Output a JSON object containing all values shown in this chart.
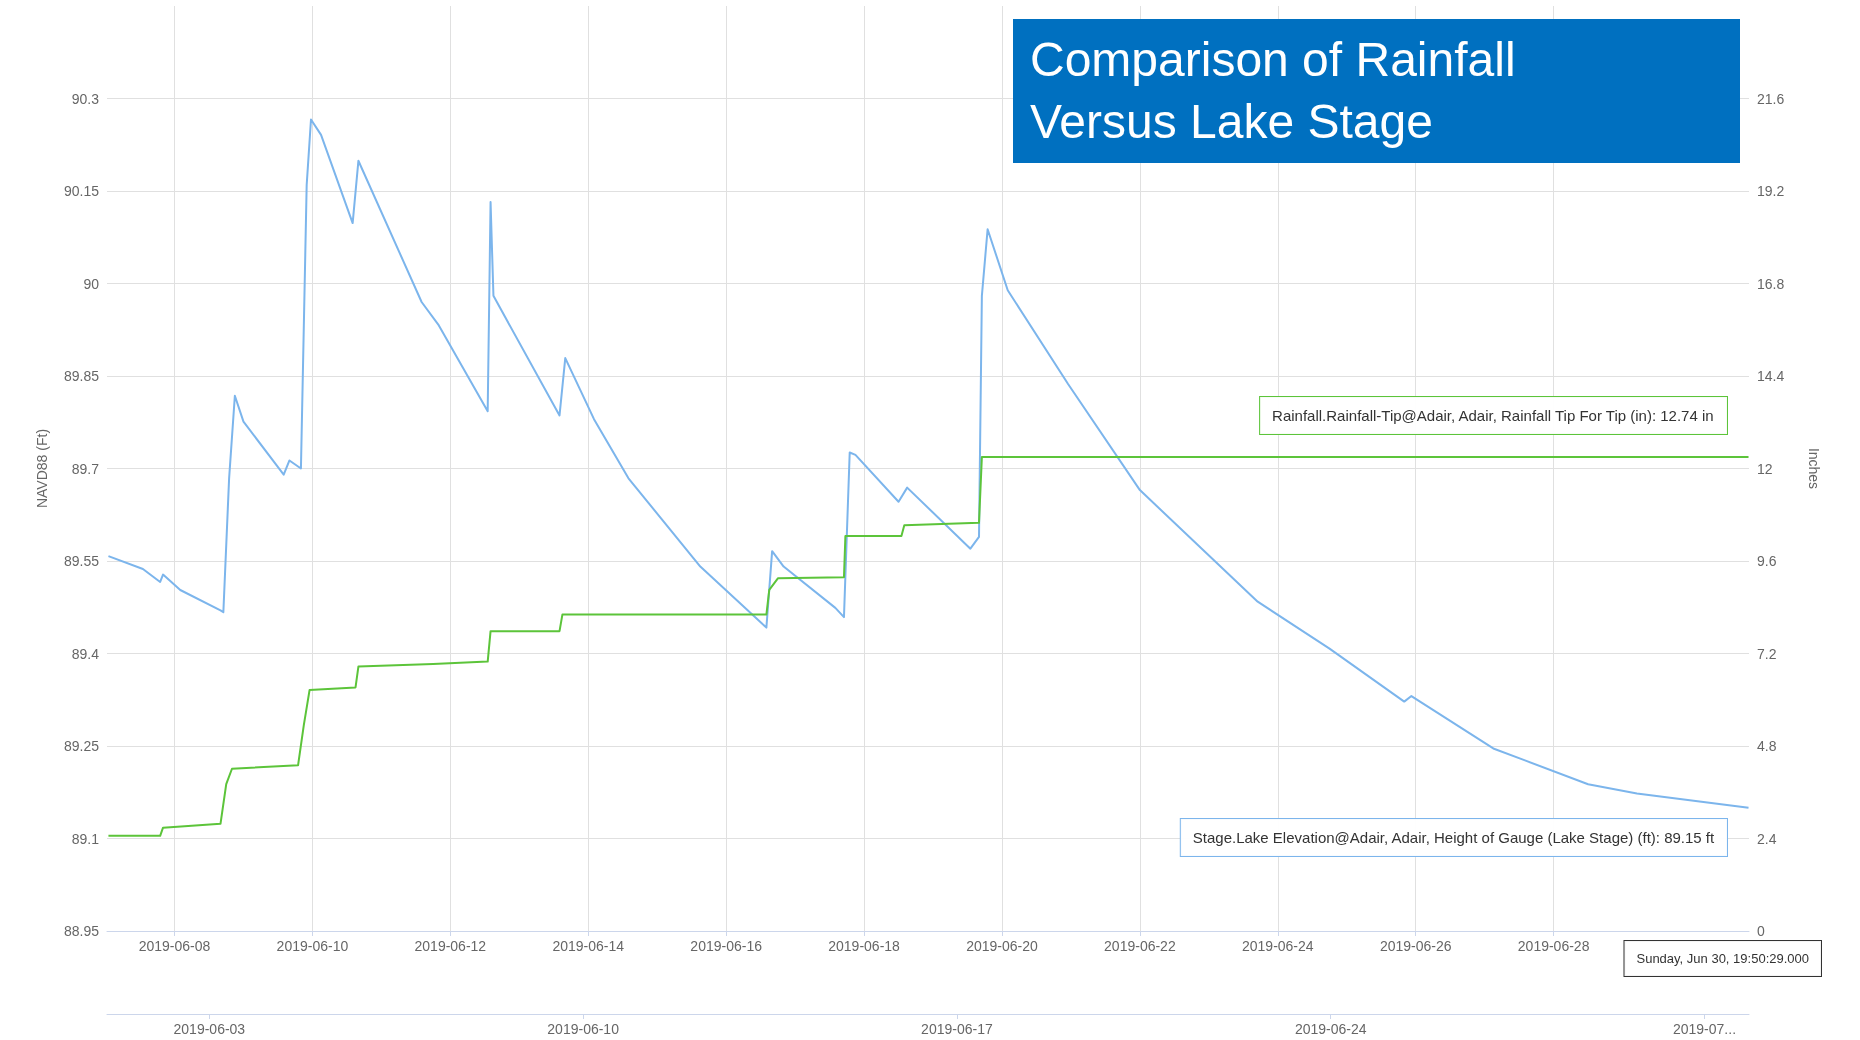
{
  "chart_data": {
    "type": "line",
    "title": "Comparison of Rainfall Versus Lake Stage",
    "ylabel": "NAVD88 (Ft)",
    "y2label": "Inches",
    "annotations": [
      "Rainfall.Rainfall-Tip@Adair, Adair, Rainfall Tip For Tip (in): 12.74 in",
      "Stage.Lake Elevation@Adair, Adair, Height of Gauge (Lake Stage) (ft): 89.15 ft",
      "Sunday, Jun 30, 19:50:29.000"
    ],
    "series": [
      {
        "color": "#7cb5ec",
        "x": [
          "2019-06-07T01:00",
          "2019-06-07T13:00",
          "2019-06-07T19:00",
          "2019-06-07T20:00",
          "2019-06-08T02:00",
          "2019-06-08T16:00",
          "2019-06-08T17:00",
          "2019-06-08T19:00",
          "2019-06-08T21:00",
          "2019-06-09T00:00",
          "2019-06-09T14:00",
          "2019-06-09T16:00",
          "2019-06-09T20:00",
          "2019-06-09T22:00",
          "2019-06-09T23:30",
          "2019-06-10T03:00",
          "2019-06-10T14:00",
          "2019-06-10T16:00",
          "2019-06-11T14:00",
          "2019-06-11T20:00",
          "2019-06-12T13:00",
          "2019-06-12T14:00",
          "2019-06-12T15:00",
          "2019-06-13T14:00",
          "2019-06-13T16:00",
          "2019-06-14T02:00",
          "2019-06-14T14:00",
          "2019-06-15T15:00",
          "2019-06-16T14:00",
          "2019-06-16T16:00",
          "2019-06-16T20:00",
          "2019-06-17T14:00",
          "2019-06-17T17:00",
          "2019-06-17T19:00",
          "2019-06-17T21:00",
          "2019-06-18T12:00",
          "2019-06-18T15:00",
          "2019-06-19T13:00",
          "2019-06-19T16:00",
          "2019-06-19T17:00",
          "2019-06-19T19:00",
          "2019-06-20T02:00",
          "2019-06-20T23:00",
          "2019-06-22T00:00",
          "2019-06-23T17:00",
          "2019-06-24T18:00",
          "2019-06-25T20:00",
          "2019-06-25T22:30",
          "2019-06-27T03:00",
          "2019-06-28T12:00",
          "2019-06-29T05:00",
          "2019-06-30T19:50"
        ],
        "values": [
          89.558,
          89.537,
          89.516,
          89.528,
          89.503,
          89.47,
          89.467,
          89.684,
          89.818,
          89.776,
          89.69,
          89.713,
          89.7,
          90.16,
          90.266,
          90.241,
          90.098,
          90.199,
          89.97,
          89.932,
          89.793,
          90.132,
          89.98,
          89.786,
          89.879,
          89.78,
          89.684,
          89.541,
          89.442,
          89.566,
          89.541,
          89.474,
          89.459,
          89.726,
          89.722,
          89.646,
          89.669,
          89.57,
          89.589,
          89.98,
          90.088,
          89.989,
          89.837,
          89.665,
          89.484,
          89.408,
          89.322,
          89.331,
          89.246,
          89.188,
          89.173,
          89.15
        ]
      },
      {
        "color": "#5cc43a",
        "axis": "y2",
        "x": [
          "2019-06-07T01:00",
          "2019-06-07T19:00",
          "2019-06-07T20:00",
          "2019-06-08T16:00",
          "2019-06-08T18:00",
          "2019-06-08T20:00",
          "2019-06-09T19:00",
          "2019-06-09T21:00",
          "2019-06-09T23:00",
          "2019-06-10T15:00",
          "2019-06-10T16:00",
          "2019-06-11T18:00",
          "2019-06-12T13:00",
          "2019-06-12T14:00",
          "2019-06-13T14:00",
          "2019-06-13T15:00",
          "2019-06-16T14:00",
          "2019-06-16T15:00",
          "2019-06-16T18:00",
          "2019-06-17T17:00",
          "2019-06-17T17:30",
          "2019-06-18T13:00",
          "2019-06-18T14:00",
          "2019-06-19T16:00",
          "2019-06-19T17:00",
          "2019-06-30T19:50"
        ],
        "values": [
          2.47,
          2.47,
          2.68,
          2.78,
          3.81,
          4.21,
          4.3,
          5.34,
          6.25,
          6.32,
          6.86,
          6.93,
          6.99,
          7.78,
          7.78,
          8.21,
          8.21,
          8.85,
          9.15,
          9.18,
          10.25,
          10.25,
          10.53,
          10.59,
          12.3,
          12.3
        ]
      }
    ],
    "xlim": [
      "2019-06-07T00:30",
      "2019-06-30T20:00"
    ],
    "xticks": [
      "2019-06-08",
      "2019-06-10",
      "2019-06-12",
      "2019-06-14",
      "2019-06-16",
      "2019-06-18",
      "2019-06-20",
      "2019-06-22",
      "2019-06-24",
      "2019-06-26",
      "2019-06-28"
    ],
    "ylim": [
      88.95,
      90.45
    ],
    "yticks": [
      88.95,
      89.1,
      89.25,
      89.4,
      89.55,
      89.7,
      89.85,
      90,
      90.15,
      90.3
    ],
    "y2lim": [
      0,
      24
    ],
    "y2ticks": [
      0,
      2.4,
      4.8,
      7.2,
      9.6,
      12,
      14.4,
      16.8,
      19.2,
      21.6
    ],
    "x2lim": [
      "2019-06-01T02:00",
      "2019-07-01T20:00"
    ],
    "x2ticks": [
      "2019-06-03",
      "2019-06-10",
      "2019-06-17",
      "2019-06-24",
      {
        "value": "2019-07-01",
        "label": "2019-07..."
      }
    ],
    "grid": true,
    "marker": "none"
  }
}
